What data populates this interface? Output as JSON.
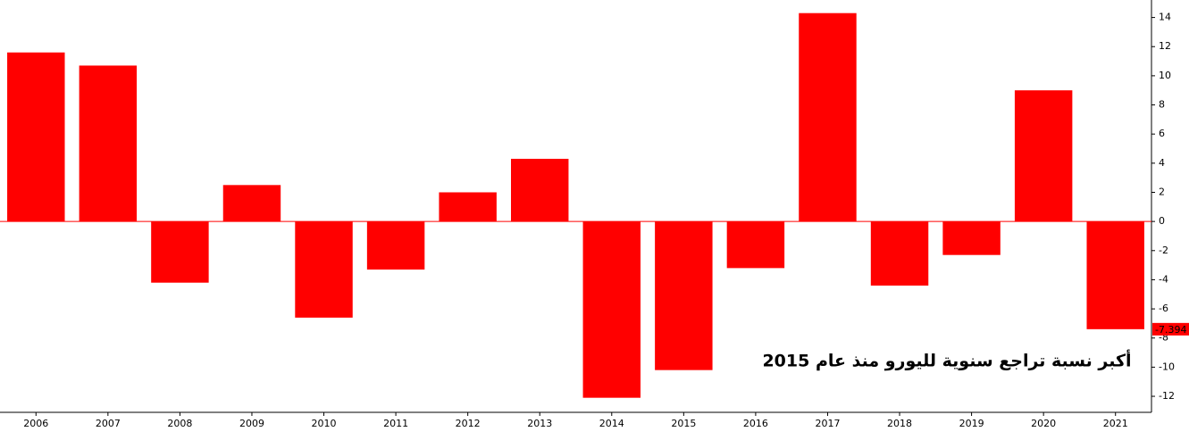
{
  "chart_data": {
    "type": "bar",
    "annotation": "أكبر نسبة تراجع سنوية لليورو منذ عام 2015",
    "categories": [
      "2006",
      "2007",
      "2008",
      "2009",
      "2010",
      "2011",
      "2012",
      "2013",
      "2014",
      "2015",
      "2016",
      "2017",
      "2018",
      "2019",
      "2020",
      "2021"
    ],
    "values": [
      11.6,
      10.7,
      -4.2,
      2.5,
      -6.6,
      -3.3,
      2.0,
      4.3,
      -12.1,
      -10.2,
      -3.2,
      14.3,
      -4.4,
      -2.3,
      9.0,
      -7.394
    ],
    "value_labels": [
      null,
      null,
      null,
      null,
      null,
      null,
      null,
      null,
      null,
      null,
      null,
      null,
      null,
      null,
      null,
      "-7.394"
    ],
    "color": "#ff0000",
    "ylim": [
      -13.1,
      15.2
    ],
    "yticks": [
      -12,
      -10,
      -8,
      -6,
      -4,
      -2,
      0,
      2,
      4,
      6,
      8,
      10,
      12,
      14
    ]
  }
}
